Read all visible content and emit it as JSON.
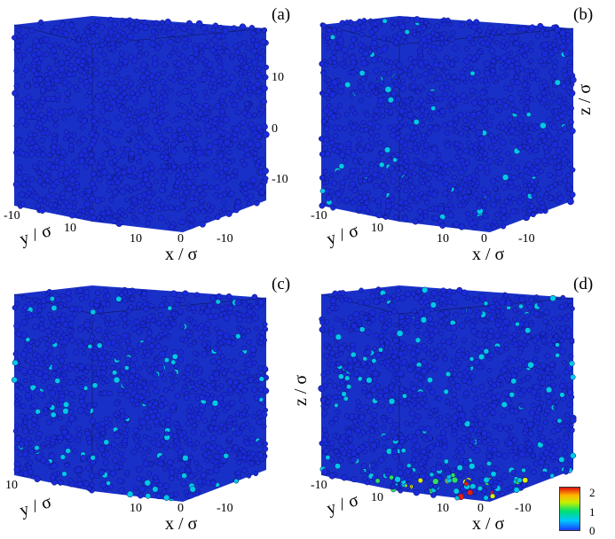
{
  "panels": [
    {
      "label": "(a)",
      "y_ticks": [
        "-10",
        "10"
      ],
      "x_ticks": [
        "10",
        "0",
        "-10"
      ],
      "z_ticks": [
        "10",
        "0",
        "-10"
      ],
      "x_label": "x / σ",
      "y_label": "y / σ",
      "z_label": "z / σ",
      "show_z_label": false
    },
    {
      "label": "(b)",
      "y_ticks": [
        "-10",
        "10"
      ],
      "x_ticks": [
        "10",
        "0",
        "-10"
      ],
      "z_ticks": [],
      "x_label": "x / σ",
      "y_label": "y / σ",
      "z_label": "z / σ",
      "show_z_label": true
    },
    {
      "label": "(c)",
      "y_ticks": [
        "10"
      ],
      "x_ticks": [
        "10",
        "0",
        "-10"
      ],
      "z_ticks": [],
      "x_label": "x / σ",
      "y_label": "y / σ",
      "z_label": "z / σ",
      "show_z_label": false
    },
    {
      "label": "(d)",
      "y_ticks": [
        "-10",
        "10"
      ],
      "x_ticks": [
        "10",
        "0",
        "-10"
      ],
      "z_ticks": [],
      "x_label": "x / σ",
      "y_label": "y / σ",
      "z_label": "z / σ",
      "show_z_label": true
    }
  ],
  "colorbar": {
    "ticks": [
      "2",
      "1",
      "0"
    ]
  },
  "colors": {
    "base": "#1a2bd8",
    "edge": "#0b1470",
    "cyan": "#00c8e8",
    "green": "#30e060",
    "yellow": "#e0f000",
    "red": "#e02010"
  }
}
